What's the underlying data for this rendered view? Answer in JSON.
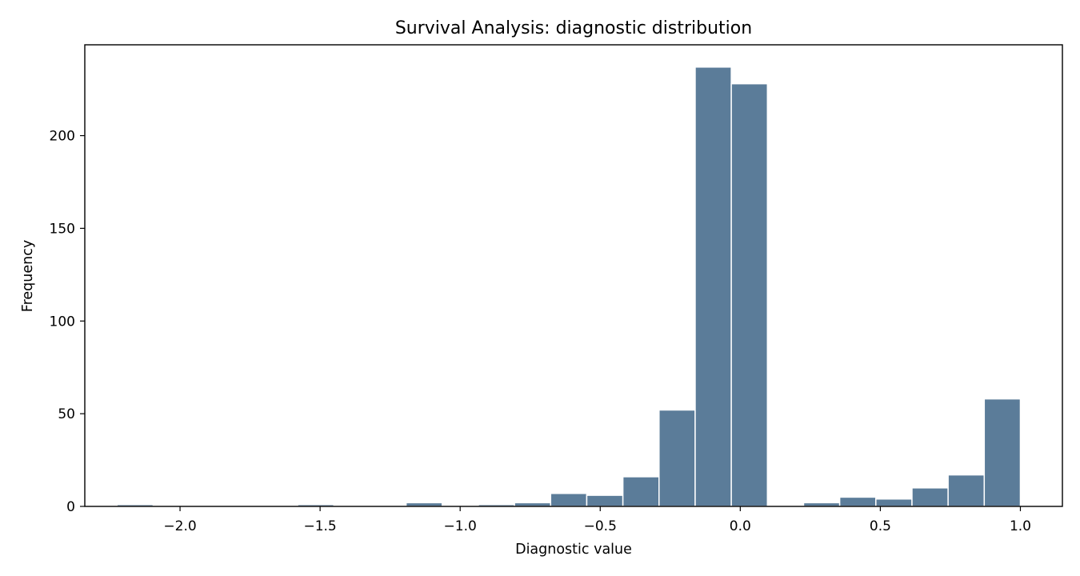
{
  "chart_data": {
    "type": "bar",
    "title": "Survival Analysis: diagnostic distribution",
    "xlabel": "Diagnostic value",
    "ylabel": "Frequency",
    "xlim": [
      -2.34,
      1.15
    ],
    "ylim": [
      0,
      249
    ],
    "bar_color": "#5b7c99",
    "grid": false,
    "x_ticks": [
      {
        "value": -2.0,
        "label": "−2.0"
      },
      {
        "value": -1.5,
        "label": "−1.5"
      },
      {
        "value": -1.0,
        "label": "−1.0"
      },
      {
        "value": -0.5,
        "label": "−0.5"
      },
      {
        "value": 0.0,
        "label": "0.0"
      },
      {
        "value": 0.5,
        "label": "0.5"
      },
      {
        "value": 1.0,
        "label": "1.0"
      }
    ],
    "y_ticks": [
      {
        "value": 0,
        "label": "0"
      },
      {
        "value": 50,
        "label": "50"
      },
      {
        "value": 100,
        "label": "100"
      },
      {
        "value": 150,
        "label": "150"
      },
      {
        "value": 200,
        "label": "200"
      }
    ],
    "bins": [
      {
        "x0": -2.225,
        "x1": -2.096,
        "count": 1
      },
      {
        "x0": -2.096,
        "x1": -1.967,
        "count": 0
      },
      {
        "x0": -1.967,
        "x1": -1.838,
        "count": 0
      },
      {
        "x0": -1.838,
        "x1": -1.709,
        "count": 0
      },
      {
        "x0": -1.709,
        "x1": -1.58,
        "count": 0
      },
      {
        "x0": -1.58,
        "x1": -1.451,
        "count": 1
      },
      {
        "x0": -1.451,
        "x1": -1.322,
        "count": 0
      },
      {
        "x0": -1.322,
        "x1": -1.193,
        "count": 0
      },
      {
        "x0": -1.193,
        "x1": -1.064,
        "count": 2
      },
      {
        "x0": -1.064,
        "x1": -0.935,
        "count": 0
      },
      {
        "x0": -0.935,
        "x1": -0.806,
        "count": 1
      },
      {
        "x0": -0.806,
        "x1": -0.677,
        "count": 2
      },
      {
        "x0": -0.677,
        "x1": -0.548,
        "count": 7
      },
      {
        "x0": -0.548,
        "x1": -0.419,
        "count": 6
      },
      {
        "x0": -0.419,
        "x1": -0.29,
        "count": 16
      },
      {
        "x0": -0.29,
        "x1": -0.161,
        "count": 52
      },
      {
        "x0": -0.161,
        "x1": -0.032,
        "count": 237
      },
      {
        "x0": -0.032,
        "x1": 0.097,
        "count": 228
      },
      {
        "x0": 0.097,
        "x1": 0.226,
        "count": 0
      },
      {
        "x0": 0.226,
        "x1": 0.355,
        "count": 2
      },
      {
        "x0": 0.355,
        "x1": 0.484,
        "count": 5
      },
      {
        "x0": 0.484,
        "x1": 0.613,
        "count": 4
      },
      {
        "x0": 0.613,
        "x1": 0.742,
        "count": 10
      },
      {
        "x0": 0.742,
        "x1": 0.871,
        "count": 17
      },
      {
        "x0": 0.871,
        "x1": 1.0,
        "count": 58
      }
    ]
  }
}
